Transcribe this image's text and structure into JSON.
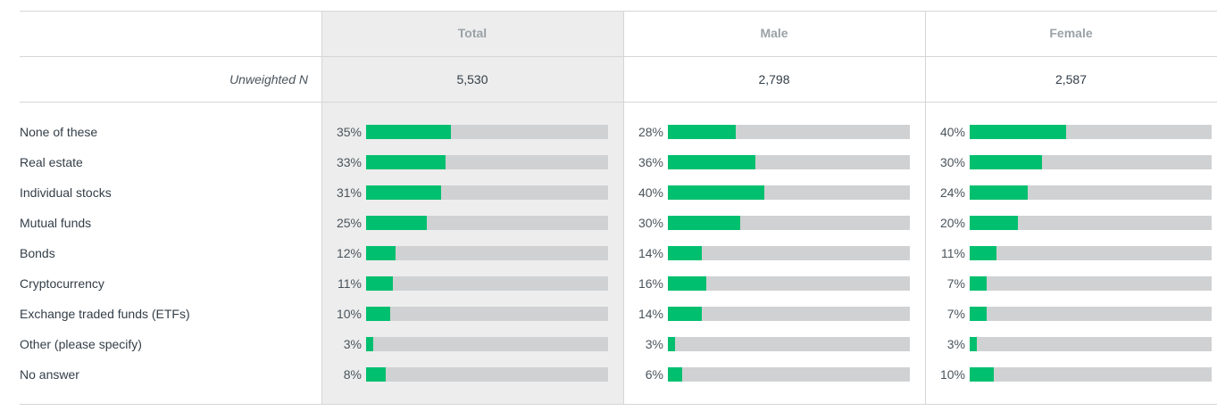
{
  "chart_data": {
    "type": "bar",
    "orientation": "horizontal",
    "title": "",
    "n_label": "Unweighted N",
    "columns": [
      {
        "name": "Total",
        "n": "5,530"
      },
      {
        "name": "Male",
        "n": "2,798"
      },
      {
        "name": "Female",
        "n": "2,587"
      }
    ],
    "categories": [
      "None of these",
      "Real estate",
      "Individual stocks",
      "Mutual funds",
      "Bonds",
      "Cryptocurrency",
      "Exchange traded funds (ETFs)",
      "Other (please specify)",
      "No answer"
    ],
    "series": [
      {
        "name": "Total",
        "values": [
          35,
          33,
          31,
          25,
          12,
          11,
          10,
          3,
          8
        ]
      },
      {
        "name": "Male",
        "values": [
          28,
          36,
          40,
          30,
          14,
          16,
          14,
          3,
          6
        ]
      },
      {
        "name": "Female",
        "values": [
          40,
          30,
          24,
          20,
          11,
          7,
          7,
          3,
          10
        ]
      }
    ],
    "value_suffix": "%",
    "xlim": [
      0,
      100
    ],
    "colors": {
      "bar": "#00bf6f",
      "track": "#d0d1d2",
      "total_bg": "#ecedec"
    }
  }
}
